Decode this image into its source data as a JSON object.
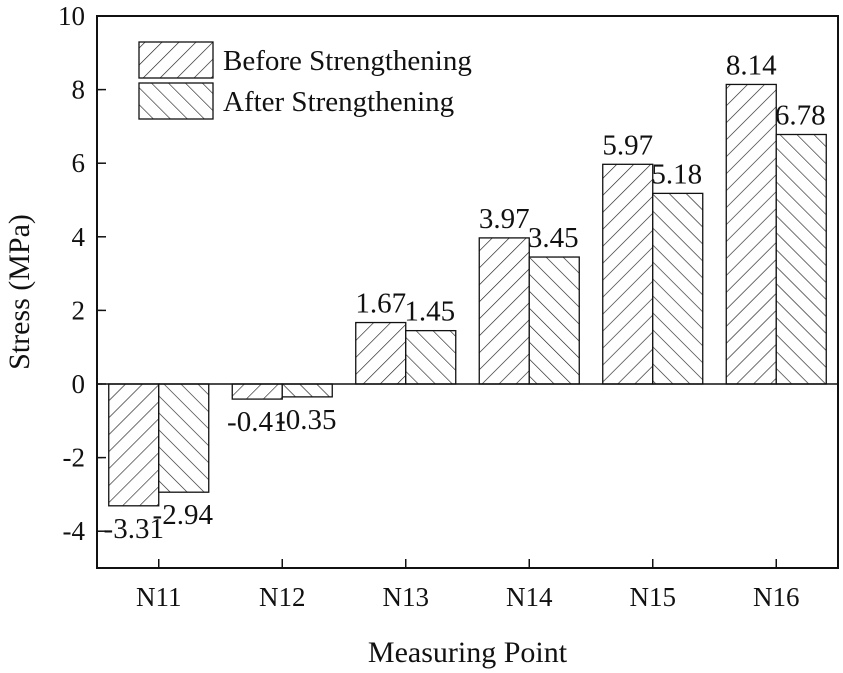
{
  "chart_data": {
    "type": "bar",
    "title": "",
    "xlabel": "Measuring Point",
    "ylabel": "Stress (MPa)",
    "categories": [
      "N11",
      "N12",
      "N13",
      "N14",
      "N15",
      "N16"
    ],
    "series": [
      {
        "name": "Before Strengthening",
        "values": [
          -3.31,
          -0.41,
          1.67,
          3.97,
          5.97,
          8.14
        ],
        "labels": [
          "-3.31",
          "-0.41",
          "1.67",
          "3.97",
          "5.97",
          "8.14"
        ],
        "hatch": "forward-diagonal"
      },
      {
        "name": "After Strengthening",
        "values": [
          -2.94,
          -0.35,
          1.45,
          3.45,
          5.18,
          6.78
        ],
        "labels": [
          "-2.94",
          "-0.35",
          "1.45",
          "3.45",
          "5.18",
          "6.78"
        ],
        "hatch": "back-diagonal"
      }
    ],
    "ylim": [
      -5,
      10
    ],
    "yticks": [
      -4,
      -2,
      0,
      2,
      4,
      6,
      8,
      10
    ],
    "ytick_labels": [
      "-4",
      "-2",
      "0",
      "2",
      "4",
      "6",
      "8",
      "10"
    ],
    "grid": false,
    "legend_position": "top-left",
    "zero_line": true
  }
}
